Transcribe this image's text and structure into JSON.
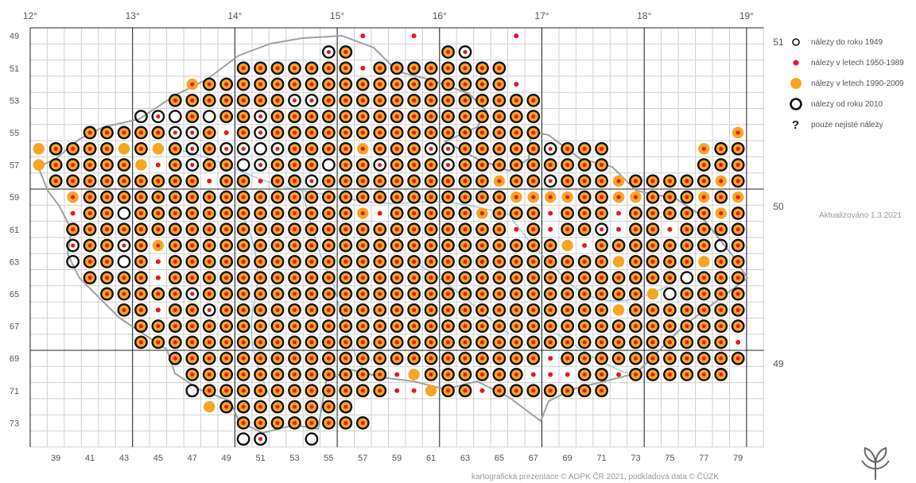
{
  "legend": {
    "items": [
      {
        "label": "nálezy do roku 1949",
        "symbol": "small-black-ring"
      },
      {
        "label": "nálezy v letech 1950-1989",
        "symbol": "red-dot",
        "color": "#e41a1c"
      },
      {
        "label": "nálezy v letech 1990-2009",
        "symbol": "orange-disc",
        "color": "#f5a623"
      },
      {
        "label": "nálezy od roku 2010",
        "symbol": "black-ring"
      },
      {
        "label": "pouze nejisté nálezy",
        "symbol": "question-mark"
      }
    ]
  },
  "updated": "Aktualizováno 1.3.2021",
  "credits": "kartografická prezentace © AOPK ČR 2021, podkladová data © ČÚZK",
  "map": {
    "longitude_labels": [
      "12°",
      "13°",
      "14°",
      "15°",
      "16°",
      "17°",
      "18°",
      "19°"
    ],
    "latitude_labels_right": [
      "51°",
      "50°",
      "49°"
    ],
    "row_labels": [
      "49",
      "51",
      "53",
      "55",
      "57",
      "59",
      "61",
      "63",
      "65",
      "67",
      "69",
      "71",
      "73"
    ],
    "column_labels": [
      "39",
      "41",
      "43",
      "45",
      "47",
      "49",
      "51",
      "53",
      "55",
      "57",
      "59",
      "61",
      "63",
      "65",
      "67",
      "69",
      "71",
      "73",
      "75",
      "77",
      "79"
    ],
    "colors": {
      "grid": "#cfcfcf",
      "major_grid": "#222222",
      "ring": "#111111",
      "orange": "#f5a623",
      "red": "#e41a1c",
      "border": "#a0a0a0",
      "rivers": "#7ab8d6"
    }
  }
}
